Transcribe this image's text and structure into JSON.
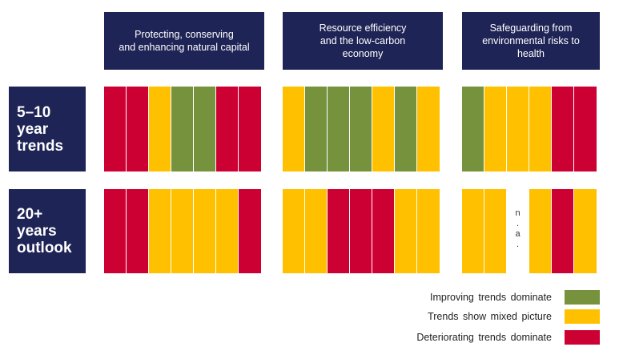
{
  "colors": {
    "improving": "#76923c",
    "mixed": "#ffc000",
    "deteriorating": "#cc0033",
    "header_bg": "#1f2456"
  },
  "column_headers": [
    "Protecting, conserving\nand enhancing natural capital",
    "Resource efficiency\nand the low-carbon\neconomy",
    "Safeguarding from\nenvironmental  risks to\nhealth"
  ],
  "rows": [
    {
      "label": "5–10\nyear\ntrends",
      "groups": [
        [
          "deteriorating",
          "deteriorating",
          "mixed",
          "improving",
          "improving",
          "deteriorating",
          "deteriorating"
        ],
        [
          "mixed",
          "improving",
          "improving",
          "improving",
          "mixed",
          "improving",
          "mixed"
        ],
        [
          "improving",
          "mixed",
          "mixed",
          "mixed",
          "deteriorating",
          "deteriorating"
        ]
      ]
    },
    {
      "label": "20+\nyears\noutlook",
      "groups": [
        [
          "deteriorating",
          "deteriorating",
          "mixed",
          "mixed",
          "mixed",
          "mixed",
          "deteriorating"
        ],
        [
          "mixed",
          "mixed",
          "deteriorating",
          "deteriorating",
          "deteriorating",
          "mixed",
          "mixed"
        ],
        [
          "mixed",
          "mixed",
          "na",
          "mixed",
          "deteriorating",
          "mixed"
        ]
      ]
    }
  ],
  "na_label": "n\n.\na\n.",
  "legend": [
    {
      "label": "Improving  trends dominate",
      "status": "improving"
    },
    {
      "label": "Trends  show mixed picture",
      "status": "mixed"
    },
    {
      "label": "Deteriorating  trends dominate",
      "status": "deteriorating"
    }
  ]
}
